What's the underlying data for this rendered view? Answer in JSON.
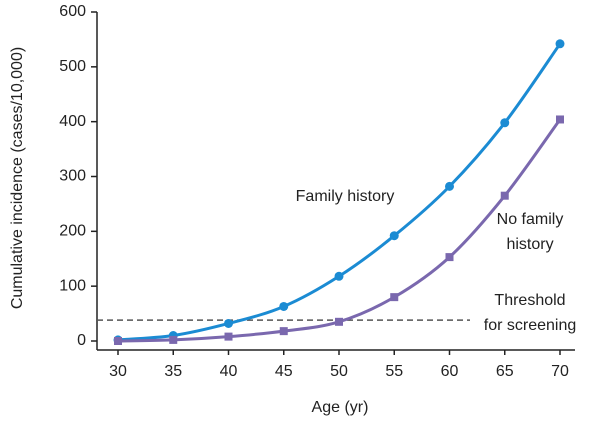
{
  "chart_data": {
    "type": "line",
    "x_label": "Age (yr)",
    "y_label": "Cumulative incidence (cases/10,000)",
    "x": [
      30,
      35,
      40,
      45,
      50,
      55,
      60,
      65,
      70
    ],
    "xlim": [
      30,
      70
    ],
    "xticks": [
      30,
      35,
      40,
      45,
      50,
      55,
      60,
      65,
      70
    ],
    "ylim": [
      0,
      600
    ],
    "yticks": [
      0,
      100,
      200,
      300,
      400,
      500,
      600
    ],
    "series": [
      {
        "name": "Family history",
        "color": "#1b8bd3",
        "marker": "circle",
        "label_lines": [
          "Family history"
        ],
        "values": [
          2,
          10,
          32,
          63,
          118,
          192,
          282,
          398,
          542
        ]
      },
      {
        "name": "No family history",
        "color": "#7a68ae",
        "marker": "square",
        "label_lines": [
          "No family",
          "history"
        ],
        "values": [
          0,
          2,
          8,
          18,
          35,
          80,
          153,
          265,
          404
        ]
      }
    ],
    "threshold": {
      "value": 38,
      "color": "#555555",
      "label_lines": [
        "Threshold",
        "for screening"
      ]
    }
  }
}
